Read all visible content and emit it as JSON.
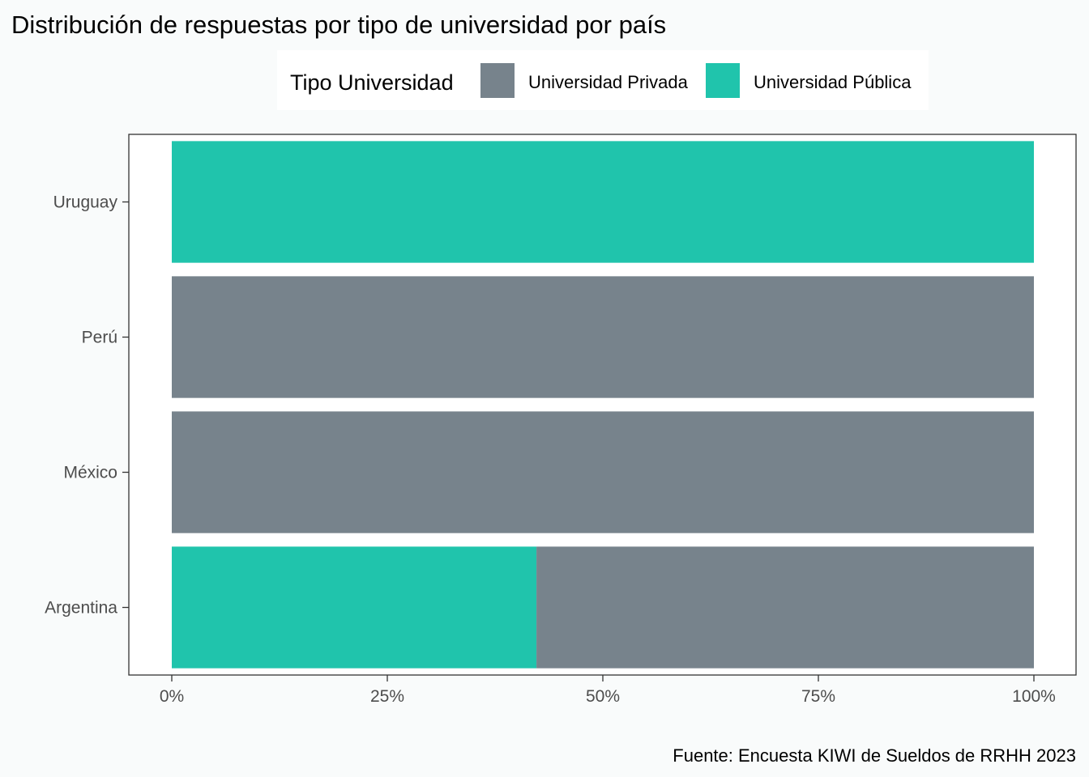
{
  "chart_data": {
    "type": "bar",
    "orientation": "horizontal",
    "stacked": true,
    "title": "Distribución de respuestas por tipo de universidad por país",
    "caption": "Fuente: Encuesta KIWI de Sueldos de RRHH 2023",
    "categories": [
      "Argentina",
      "México",
      "Perú",
      "Uruguay"
    ],
    "series": [
      {
        "name": "Universidad Pública",
        "color": "#20c4ac",
        "values": [
          0.423,
          0,
          0,
          1
        ]
      },
      {
        "name": "Universidad Privada",
        "color": "#77838c",
        "values": [
          0.577,
          1,
          1,
          0
        ]
      }
    ],
    "legend": {
      "title": "Tipo Universidad",
      "position": "top",
      "items": [
        {
          "label": "Universidad Privada",
          "color": "#77838c"
        },
        {
          "label": "Universidad Pública",
          "color": "#20c4ac"
        }
      ]
    },
    "x_ticks": [
      "0%",
      "25%",
      "50%",
      "75%",
      "100%"
    ],
    "x_tick_values": [
      0,
      0.25,
      0.5,
      0.75,
      1
    ],
    "xlim": [
      0,
      1
    ],
    "grid": false
  }
}
